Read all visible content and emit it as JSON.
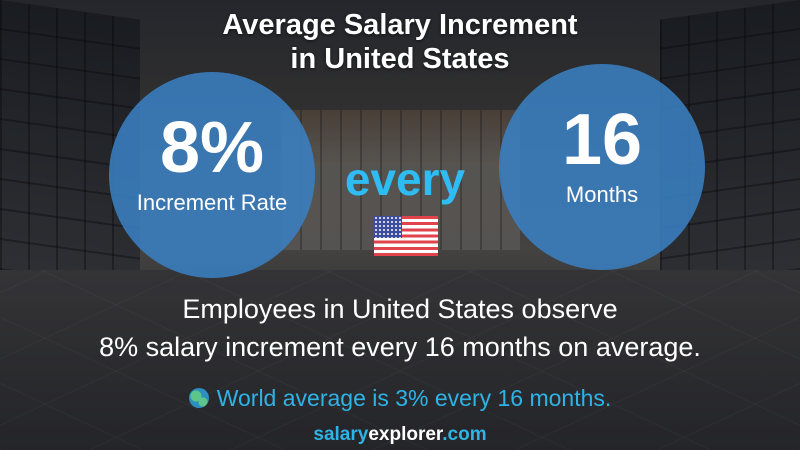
{
  "title": {
    "line1": "Average Salary Increment",
    "line2": "in United States"
  },
  "left_circle": {
    "value": "8%",
    "label": "Increment Rate"
  },
  "connector": "every",
  "right_circle": {
    "value": "16",
    "label": "Months"
  },
  "flag_icon": "us-flag-icon",
  "description": {
    "line1": "Employees in United States observe",
    "line2": "8% salary increment every 16 months on average."
  },
  "world_average": {
    "icon": "globe-icon",
    "text": "World average is 3% every 16 months."
  },
  "brand": {
    "part1": "salary",
    "part2": "explorer",
    "part3": ".com"
  },
  "colors": {
    "circle": "#3a80c2",
    "accent": "#2ebcf2",
    "text": "#ffffff"
  }
}
